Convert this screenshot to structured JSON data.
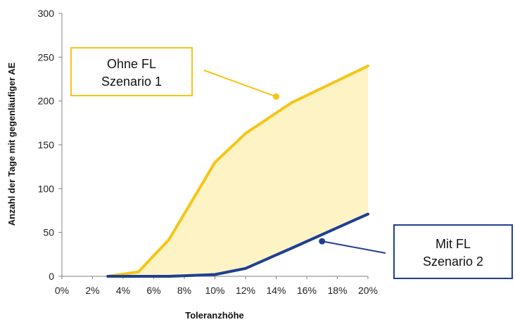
{
  "chart_data": {
    "type": "area",
    "x": [
      3,
      5,
      7,
      10,
      12,
      15,
      20
    ],
    "x_tick_labels": [
      "0%",
      "2%",
      "4%",
      "6%",
      "8%",
      "10%",
      "12%",
      "14%",
      "16%",
      "18%",
      "20%"
    ],
    "y_tick_labels": [
      "0",
      "50",
      "100",
      "150",
      "200",
      "250",
      "300"
    ],
    "xlim": [
      0,
      20
    ],
    "ylim": [
      0,
      300
    ],
    "xlabel": "Toleranzhöhe",
    "ylabel": "Anzahl der Tage mit gegenläufiger AE",
    "grid": false,
    "series": [
      {
        "values": [
          0,
          5,
          42,
          130,
          163,
          198,
          240
        ],
        "color": "#F5C518"
      },
      {
        "values": [
          0,
          0,
          0,
          2,
          9,
          32,
          71
        ],
        "color": "#1F3F93"
      }
    ],
    "fill_between_color": "#FDF3C4",
    "annotations": [
      {
        "lines": [
          "Ohne FL",
          "Szenario 1"
        ],
        "color": "#F5C518",
        "target_x": 14,
        "target_y": 205
      },
      {
        "lines": [
          "Mit FL",
          "Szenario 2"
        ],
        "color": "#1F3F93",
        "target_x": 17,
        "target_y": 40
      }
    ]
  }
}
